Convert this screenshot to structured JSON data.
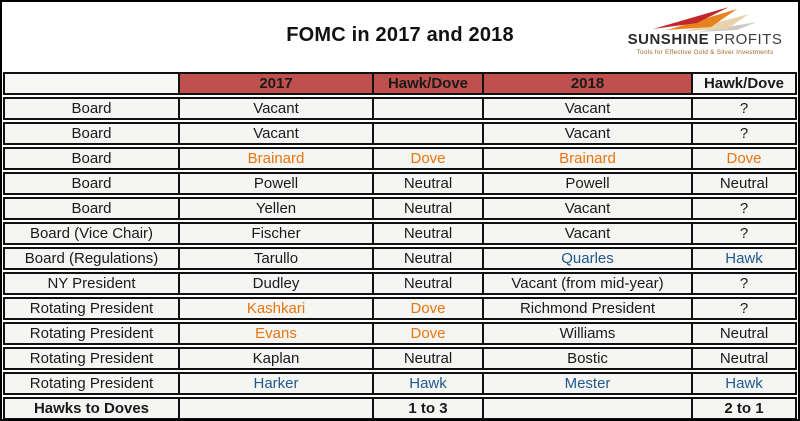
{
  "title": "FOMC in 2017 and 2018",
  "logo": {
    "name_bold": "SUNSHINE",
    "name_light": "PROFITS",
    "tagline": "Tools for Effective Gold & Silver Investments"
  },
  "colors": {
    "header_bg": "#C0504D",
    "dove_text": "#E8750D",
    "hawk_text": "#20598C",
    "cell_bg": "#f5f5f3",
    "border": "#111111",
    "logo_red": "#C2272D",
    "logo_orange": "#E8821E",
    "logo_tan": "#E9D2AE"
  },
  "chart_data": {
    "type": "table",
    "title": "FOMC in 2017 and 2018",
    "columns": [
      "",
      "2017",
      "Hawk/Dove",
      "2018",
      "Hawk/Dove"
    ],
    "header_styles": [
      "plain",
      "red",
      "red",
      "red",
      "plain"
    ],
    "rows": [
      {
        "cells": [
          {
            "t": "Board"
          },
          {
            "t": "Vacant"
          },
          {
            "t": ""
          },
          {
            "t": "Vacant"
          },
          {
            "t": "?"
          }
        ]
      },
      {
        "cells": [
          {
            "t": "Board"
          },
          {
            "t": "Vacant"
          },
          {
            "t": ""
          },
          {
            "t": "Vacant"
          },
          {
            "t": "?"
          }
        ]
      },
      {
        "cells": [
          {
            "t": "Board"
          },
          {
            "t": "Brainard",
            "c": "dove"
          },
          {
            "t": "Dove",
            "c": "dove"
          },
          {
            "t": "Brainard",
            "c": "dove"
          },
          {
            "t": "Dove",
            "c": "dove"
          }
        ]
      },
      {
        "cells": [
          {
            "t": "Board"
          },
          {
            "t": "Powell"
          },
          {
            "t": "Neutral"
          },
          {
            "t": "Powell"
          },
          {
            "t": "Neutral"
          }
        ]
      },
      {
        "cells": [
          {
            "t": "Board"
          },
          {
            "t": "Yellen"
          },
          {
            "t": "Neutral"
          },
          {
            "t": "Vacant"
          },
          {
            "t": "?"
          }
        ]
      },
      {
        "cells": [
          {
            "t": "Board (Vice Chair)"
          },
          {
            "t": "Fischer"
          },
          {
            "t": "Neutral"
          },
          {
            "t": "Vacant"
          },
          {
            "t": "?"
          }
        ]
      },
      {
        "cells": [
          {
            "t": "Board (Regulations)"
          },
          {
            "t": "Tarullo"
          },
          {
            "t": "Neutral"
          },
          {
            "t": "Quarles",
            "c": "hawk"
          },
          {
            "t": "Hawk",
            "c": "hawk"
          }
        ]
      },
      {
        "cells": [
          {
            "t": "NY President"
          },
          {
            "t": "Dudley"
          },
          {
            "t": "Neutral"
          },
          {
            "t": "Vacant (from mid-year)"
          },
          {
            "t": "?"
          }
        ]
      },
      {
        "cells": [
          {
            "t": "Rotating President"
          },
          {
            "t": "Kashkari",
            "c": "dove"
          },
          {
            "t": "Dove",
            "c": "dove"
          },
          {
            "t": "Richmond President"
          },
          {
            "t": "?"
          }
        ]
      },
      {
        "cells": [
          {
            "t": "Rotating President"
          },
          {
            "t": "Evans",
            "c": "dove"
          },
          {
            "t": "Dove",
            "c": "dove"
          },
          {
            "t": "Williams"
          },
          {
            "t": "Neutral"
          }
        ]
      },
      {
        "cells": [
          {
            "t": "Rotating President"
          },
          {
            "t": "Kaplan"
          },
          {
            "t": "Neutral"
          },
          {
            "t": "Bostic"
          },
          {
            "t": "Neutral"
          }
        ]
      },
      {
        "cells": [
          {
            "t": "Rotating President"
          },
          {
            "t": "Harker",
            "c": "hawk"
          },
          {
            "t": "Hawk",
            "c": "hawk"
          },
          {
            "t": "Mester",
            "c": "hawk"
          },
          {
            "t": "Hawk",
            "c": "hawk"
          }
        ]
      },
      {
        "bold": true,
        "cells": [
          {
            "t": "Hawks to Doves"
          },
          {
            "t": ""
          },
          {
            "t": "1 to 3"
          },
          {
            "t": ""
          },
          {
            "t": "2 to 1"
          }
        ]
      }
    ],
    "summary": {
      "label": "Hawks to Doves",
      "year_2017": "1 to 3",
      "year_2018": "2 to 1"
    }
  }
}
